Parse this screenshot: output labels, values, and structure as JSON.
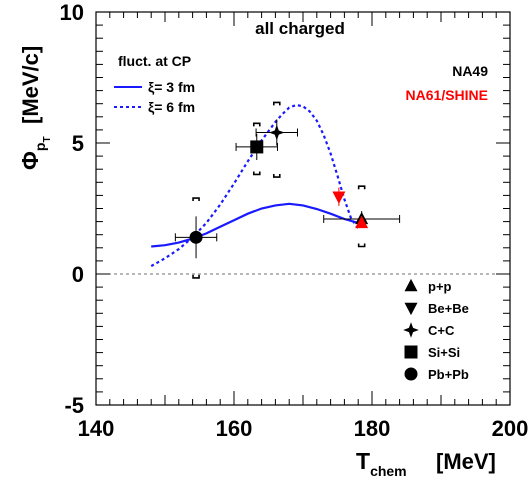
{
  "chart_data": {
    "type": "scatter",
    "title": "all charged",
    "xlabel": "T",
    "xlabel_sub": "chem",
    "xlabel_unit": "[MeV]",
    "ylabel": "Φ",
    "ylabel_sub": "p",
    "ylabel_subsub": "T",
    "ylabel_unit": "[MeV/c]",
    "xlim": [
      140,
      200
    ],
    "ylim": [
      -5,
      10
    ],
    "x_ticks": [
      "140",
      "160",
      "180",
      "200"
    ],
    "y_ticks": [
      "-5",
      "0",
      "5",
      "10"
    ],
    "grid": false,
    "experiments": [
      {
        "label": "NA49",
        "color": "#000000"
      },
      {
        "label": "NA61/SHINE",
        "color": "#ff0000"
      }
    ],
    "model_legend": {
      "title": "fluct. at CP",
      "entries": [
        {
          "label": "ξ= 3 fm",
          "style": "solid"
        },
        {
          "label": "ξ= 6 fm",
          "style": "dotted"
        }
      ]
    },
    "model_curves": [
      {
        "label": "ξ= 3 fm",
        "color": "#1a1aff",
        "style": "solid",
        "x": [
          148,
          150,
          152,
          154,
          156,
          158,
          160,
          162,
          164,
          166,
          168,
          170,
          172,
          174,
          176,
          178
        ],
        "y": [
          1.05,
          1.1,
          1.2,
          1.35,
          1.55,
          1.8,
          2.05,
          2.3,
          2.5,
          2.62,
          2.68,
          2.62,
          2.48,
          2.3,
          2.1,
          1.95
        ]
      },
      {
        "label": "ξ= 6 fm",
        "color": "#1a1aff",
        "style": "dotted",
        "x": [
          148,
          150,
          152,
          154,
          156,
          158,
          160,
          162,
          164,
          166,
          167,
          168,
          169,
          170,
          171,
          172,
          173,
          174,
          175,
          176,
          177,
          178
        ],
        "y": [
          0.3,
          0.6,
          0.95,
          1.4,
          1.95,
          2.65,
          3.45,
          4.3,
          5.1,
          5.8,
          6.1,
          6.35,
          6.45,
          6.4,
          6.2,
          5.85,
          5.3,
          4.6,
          3.75,
          2.85,
          2.1,
          1.75
        ]
      }
    ],
    "points": [
      {
        "system": "p+p",
        "marker": "triangle-up",
        "color": "#000000",
        "x": 178.5,
        "y": 2.1,
        "xerr": 5.5,
        "yerr": 0.3,
        "syst_low": 1.05,
        "syst_high": 3.35
      },
      {
        "system": "p+p",
        "marker": "triangle-up",
        "color": "#ff0000",
        "x": 178.5,
        "y": 1.95,
        "xerr": 0,
        "yerr": 0.15,
        "syst_low": null,
        "syst_high": null
      },
      {
        "system": "Be+Be",
        "marker": "triangle-down",
        "color": "#ff0000",
        "x": 175.2,
        "y": 2.95,
        "xerr": 0,
        "yerr": 0.35,
        "syst_low": null,
        "syst_high": null
      },
      {
        "system": "C+C",
        "marker": "star",
        "color": "#000000",
        "x": 166.2,
        "y": 5.4,
        "xerr": 3.0,
        "yerr": 0.5,
        "syst_low": 3.7,
        "syst_high": 6.55
      },
      {
        "system": "Si+Si",
        "marker": "square",
        "color": "#000000",
        "x": 163.3,
        "y": 4.85,
        "xerr": 3.0,
        "yerr": 0.5,
        "syst_low": 3.8,
        "syst_high": 5.75
      },
      {
        "system": "Pb+Pb",
        "marker": "circle",
        "color": "#000000",
        "x": 154.5,
        "y": 1.4,
        "xerr": 3.0,
        "yerr": 0.8,
        "syst_low": -0.15,
        "syst_high": 2.9
      }
    ],
    "marker_legend": [
      {
        "label": "p+p",
        "marker": "triangle-up"
      },
      {
        "label": "Be+Be",
        "marker": "triangle-down"
      },
      {
        "label": "C+C",
        "marker": "star"
      },
      {
        "label": "Si+Si",
        "marker": "square"
      },
      {
        "label": "Pb+Pb",
        "marker": "circle"
      }
    ],
    "reference_line": {
      "y": 0,
      "style": "dashed"
    }
  }
}
